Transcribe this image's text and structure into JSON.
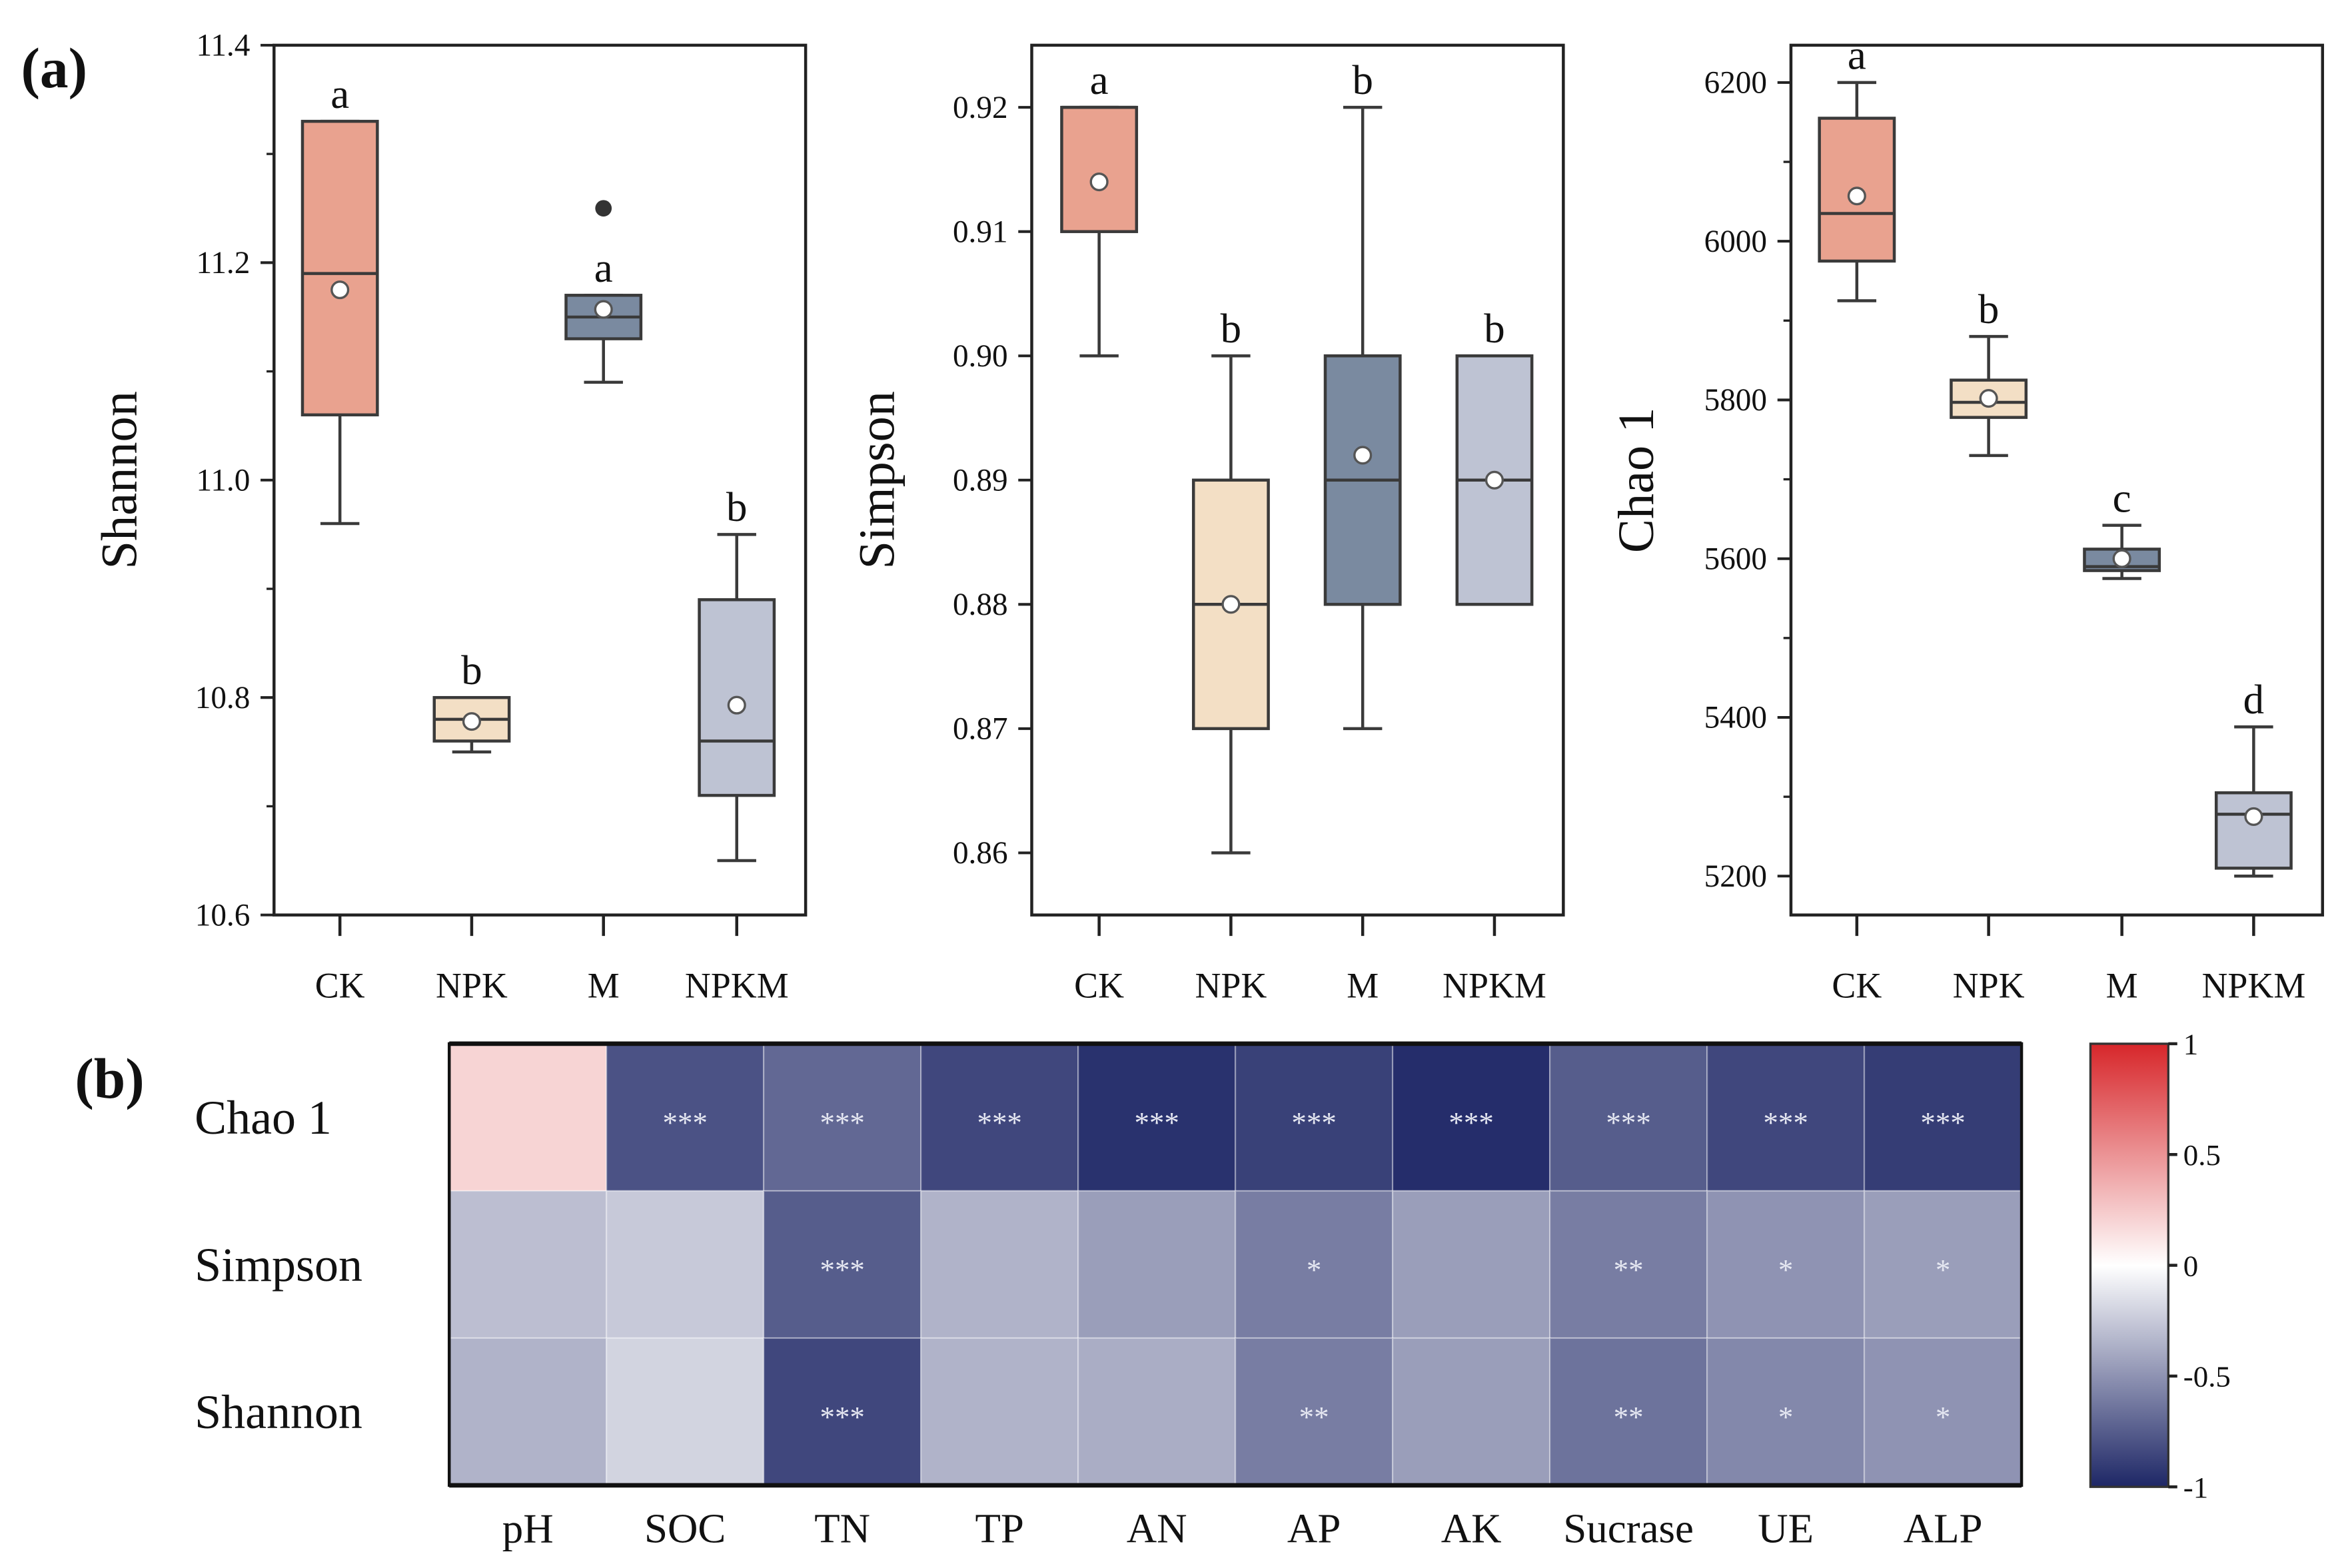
{
  "panel_labels": {
    "a": "(a)",
    "b": "(b)"
  },
  "chart_data": [
    {
      "type": "boxplot",
      "ylabel": "Shannon",
      "ylim": [
        10.6,
        11.4
      ],
      "yticks": [
        10.6,
        10.8,
        11.0,
        11.2,
        11.4
      ],
      "ytick_labels": [
        "10.6",
        "10.8",
        "11.0",
        "11.2",
        "11.4"
      ],
      "minor_step": 0.1,
      "categories": [
        "CK",
        "NPK",
        "M",
        "NPKM"
      ],
      "boxes": [
        {
          "min": 10.96,
          "q1": 11.06,
          "median": 11.19,
          "q3": 11.33,
          "max": 11.33,
          "mean": 11.175,
          "outliers": [],
          "letter": "a"
        },
        {
          "min": 10.75,
          "q1": 10.76,
          "median": 10.78,
          "q3": 10.8,
          "max": 10.8,
          "mean": 10.778,
          "outliers": [],
          "letter": "b"
        },
        {
          "min": 11.09,
          "q1": 11.13,
          "median": 11.15,
          "q3": 11.17,
          "max": 11.17,
          "mean": 11.157,
          "outliers": [
            11.25
          ],
          "letter": "a"
        },
        {
          "min": 10.65,
          "q1": 10.71,
          "median": 10.76,
          "q3": 10.89,
          "max": 10.95,
          "mean": 10.793,
          "outliers": [],
          "letter": "b"
        }
      ]
    },
    {
      "type": "boxplot",
      "ylabel": "Simpson",
      "ylim": [
        0.855,
        0.925
      ],
      "yticks": [
        0.86,
        0.87,
        0.88,
        0.89,
        0.9,
        0.91,
        0.92
      ],
      "ytick_labels": [
        "0.86",
        "0.87",
        "0.88",
        "0.89",
        "0.90",
        "0.91",
        "0.92"
      ],
      "minor_step": null,
      "categories": [
        "CK",
        "NPK",
        "M",
        "NPKM"
      ],
      "boxes": [
        {
          "min": 0.9,
          "q1": 0.91,
          "median": 0.92,
          "q3": 0.92,
          "max": 0.92,
          "mean": 0.914,
          "outliers": [],
          "letter": "a"
        },
        {
          "min": 0.86,
          "q1": 0.87,
          "median": 0.88,
          "q3": 0.89,
          "max": 0.9,
          "mean": 0.88,
          "outliers": [],
          "letter": "b"
        },
        {
          "min": 0.87,
          "q1": 0.88,
          "median": 0.89,
          "q3": 0.9,
          "max": 0.92,
          "mean": 0.892,
          "outliers": [],
          "letter": "b"
        },
        {
          "min": 0.88,
          "q1": 0.88,
          "median": 0.89,
          "q3": 0.9,
          "max": 0.9,
          "mean": 0.89,
          "outliers": [],
          "letter": "b"
        }
      ]
    },
    {
      "type": "boxplot",
      "ylabel": "Chao 1",
      "ylim": [
        5151,
        6247
      ],
      "yticks": [
        5200,
        5400,
        5600,
        5800,
        6000,
        6200
      ],
      "ytick_labels": [
        "5200",
        "5400",
        "5600",
        "5800",
        "6000",
        "6200"
      ],
      "minor_step": 100,
      "categories": [
        "CK",
        "NPK",
        "M",
        "NPKM"
      ],
      "boxes": [
        {
          "min": 5925,
          "q1": 5975,
          "median": 6035,
          "q3": 6155,
          "max": 6200,
          "mean": 6057,
          "outliers": [],
          "letter": "a"
        },
        {
          "min": 5730,
          "q1": 5778,
          "median": 5797,
          "q3": 5825,
          "max": 5880,
          "mean": 5802,
          "outliers": [],
          "letter": "b"
        },
        {
          "min": 5575,
          "q1": 5585,
          "median": 5590,
          "q3": 5612,
          "max": 5642,
          "mean": 5600,
          "outliers": [],
          "letter": "c"
        },
        {
          "min": 5200,
          "q1": 5210,
          "median": 5278,
          "q3": 5305,
          "max": 5388,
          "mean": 5275,
          "outliers": [],
          "letter": "d"
        }
      ]
    },
    {
      "type": "heatmap",
      "rows": [
        "Chao 1",
        "Simpson",
        "Shannon"
      ],
      "columns": [
        "pH",
        "SOC",
        "TN",
        "TP",
        "AN",
        "AP",
        "AK",
        "Sucrase",
        "UE",
        "ALP"
      ],
      "values": [
        [
          0.2,
          -0.8,
          -0.7,
          -0.85,
          -0.95,
          -0.88,
          -0.97,
          -0.75,
          -0.85,
          -0.9
        ],
        [
          -0.3,
          -0.25,
          -0.75,
          -0.35,
          -0.45,
          -0.6,
          -0.45,
          -0.6,
          -0.5,
          -0.45
        ],
        [
          -0.35,
          -0.2,
          -0.85,
          -0.35,
          -0.38,
          -0.6,
          -0.45,
          -0.65,
          -0.55,
          -0.5
        ]
      ],
      "significance": [
        [
          "",
          "***",
          "***",
          "***",
          "***",
          "***",
          "***",
          "***",
          "***",
          "***"
        ],
        [
          "",
          "",
          "***",
          "",
          "",
          "*",
          "",
          "**",
          "*",
          "*"
        ],
        [
          "",
          "",
          "***",
          "",
          "",
          "**",
          "",
          "**",
          "*",
          "*"
        ]
      ],
      "colorbar": {
        "range": [
          -1,
          1
        ],
        "ticks": [
          1,
          0.5,
          0,
          -0.5,
          -1
        ],
        "tick_labels": [
          "1",
          "0.5",
          "0",
          "-0.5",
          "-1"
        ]
      }
    }
  ],
  "colors": {
    "CK": "#e9a28f",
    "NPK": "#f3dfc5",
    "M": "#7a8aa0",
    "NPKM": "#bec3d3",
    "neg": "#1e2766",
    "mid": "#ffffff",
    "pos": "#d7262a"
  }
}
